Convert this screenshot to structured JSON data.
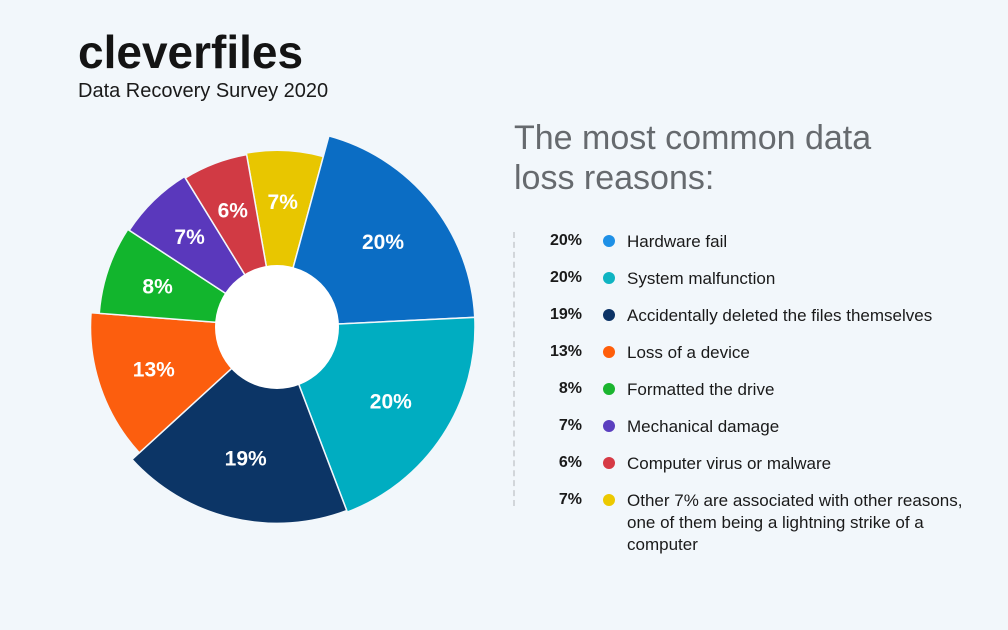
{
  "brand": {
    "logo_text": "cleverfiles",
    "subtitle": "Data Recovery Survey 2020",
    "accent_color": "#1e86e6"
  },
  "title_lines": [
    "The most common data",
    "loss reasons:"
  ],
  "legend": [
    {
      "pct": "20%",
      "label": "Hardware fail",
      "color": "#1e90e6"
    },
    {
      "pct": "20%",
      "label": "System malfunction",
      "color": "#0fb4c2"
    },
    {
      "pct": "19%",
      "label": "Accidentally deleted the files themselves",
      "color": "#0c3366"
    },
    {
      "pct": "13%",
      "label": "Loss of a device",
      "color": "#ff5e0a"
    },
    {
      "pct": "8%",
      "label": "Formatted the drive",
      "color": "#1bb52f"
    },
    {
      "pct": "7%",
      "label": "Mechanical damage",
      "color": "#5b3fbf"
    },
    {
      "pct": "6%",
      "label": "Computer virus or malware",
      "color": "#d63a45"
    },
    {
      "pct": "7%",
      "label": "Other 7% are associated with other reasons, one of them being a lightning strike of a computer",
      "color": "#ecc900"
    }
  ],
  "chart_data": {
    "type": "pie",
    "donut": true,
    "segments": [
      {
        "label": "7%",
        "value": 7,
        "color": "#e8c600"
      },
      {
        "label": "20%",
        "value": 20,
        "color": "#0b6dc4"
      },
      {
        "label": "20%",
        "value": 20,
        "color": "#00adc1"
      },
      {
        "label": "19%",
        "value": 19,
        "color": "#0c3566"
      },
      {
        "label": "13%",
        "value": 13,
        "color": "#fc5e0e"
      },
      {
        "label": "8%",
        "value": 8,
        "color": "#12b52d"
      },
      {
        "label": "7%",
        "value": 7,
        "color": "#5a38bc"
      },
      {
        "label": "6%",
        "value": 6,
        "color": "#d13a44"
      }
    ]
  }
}
